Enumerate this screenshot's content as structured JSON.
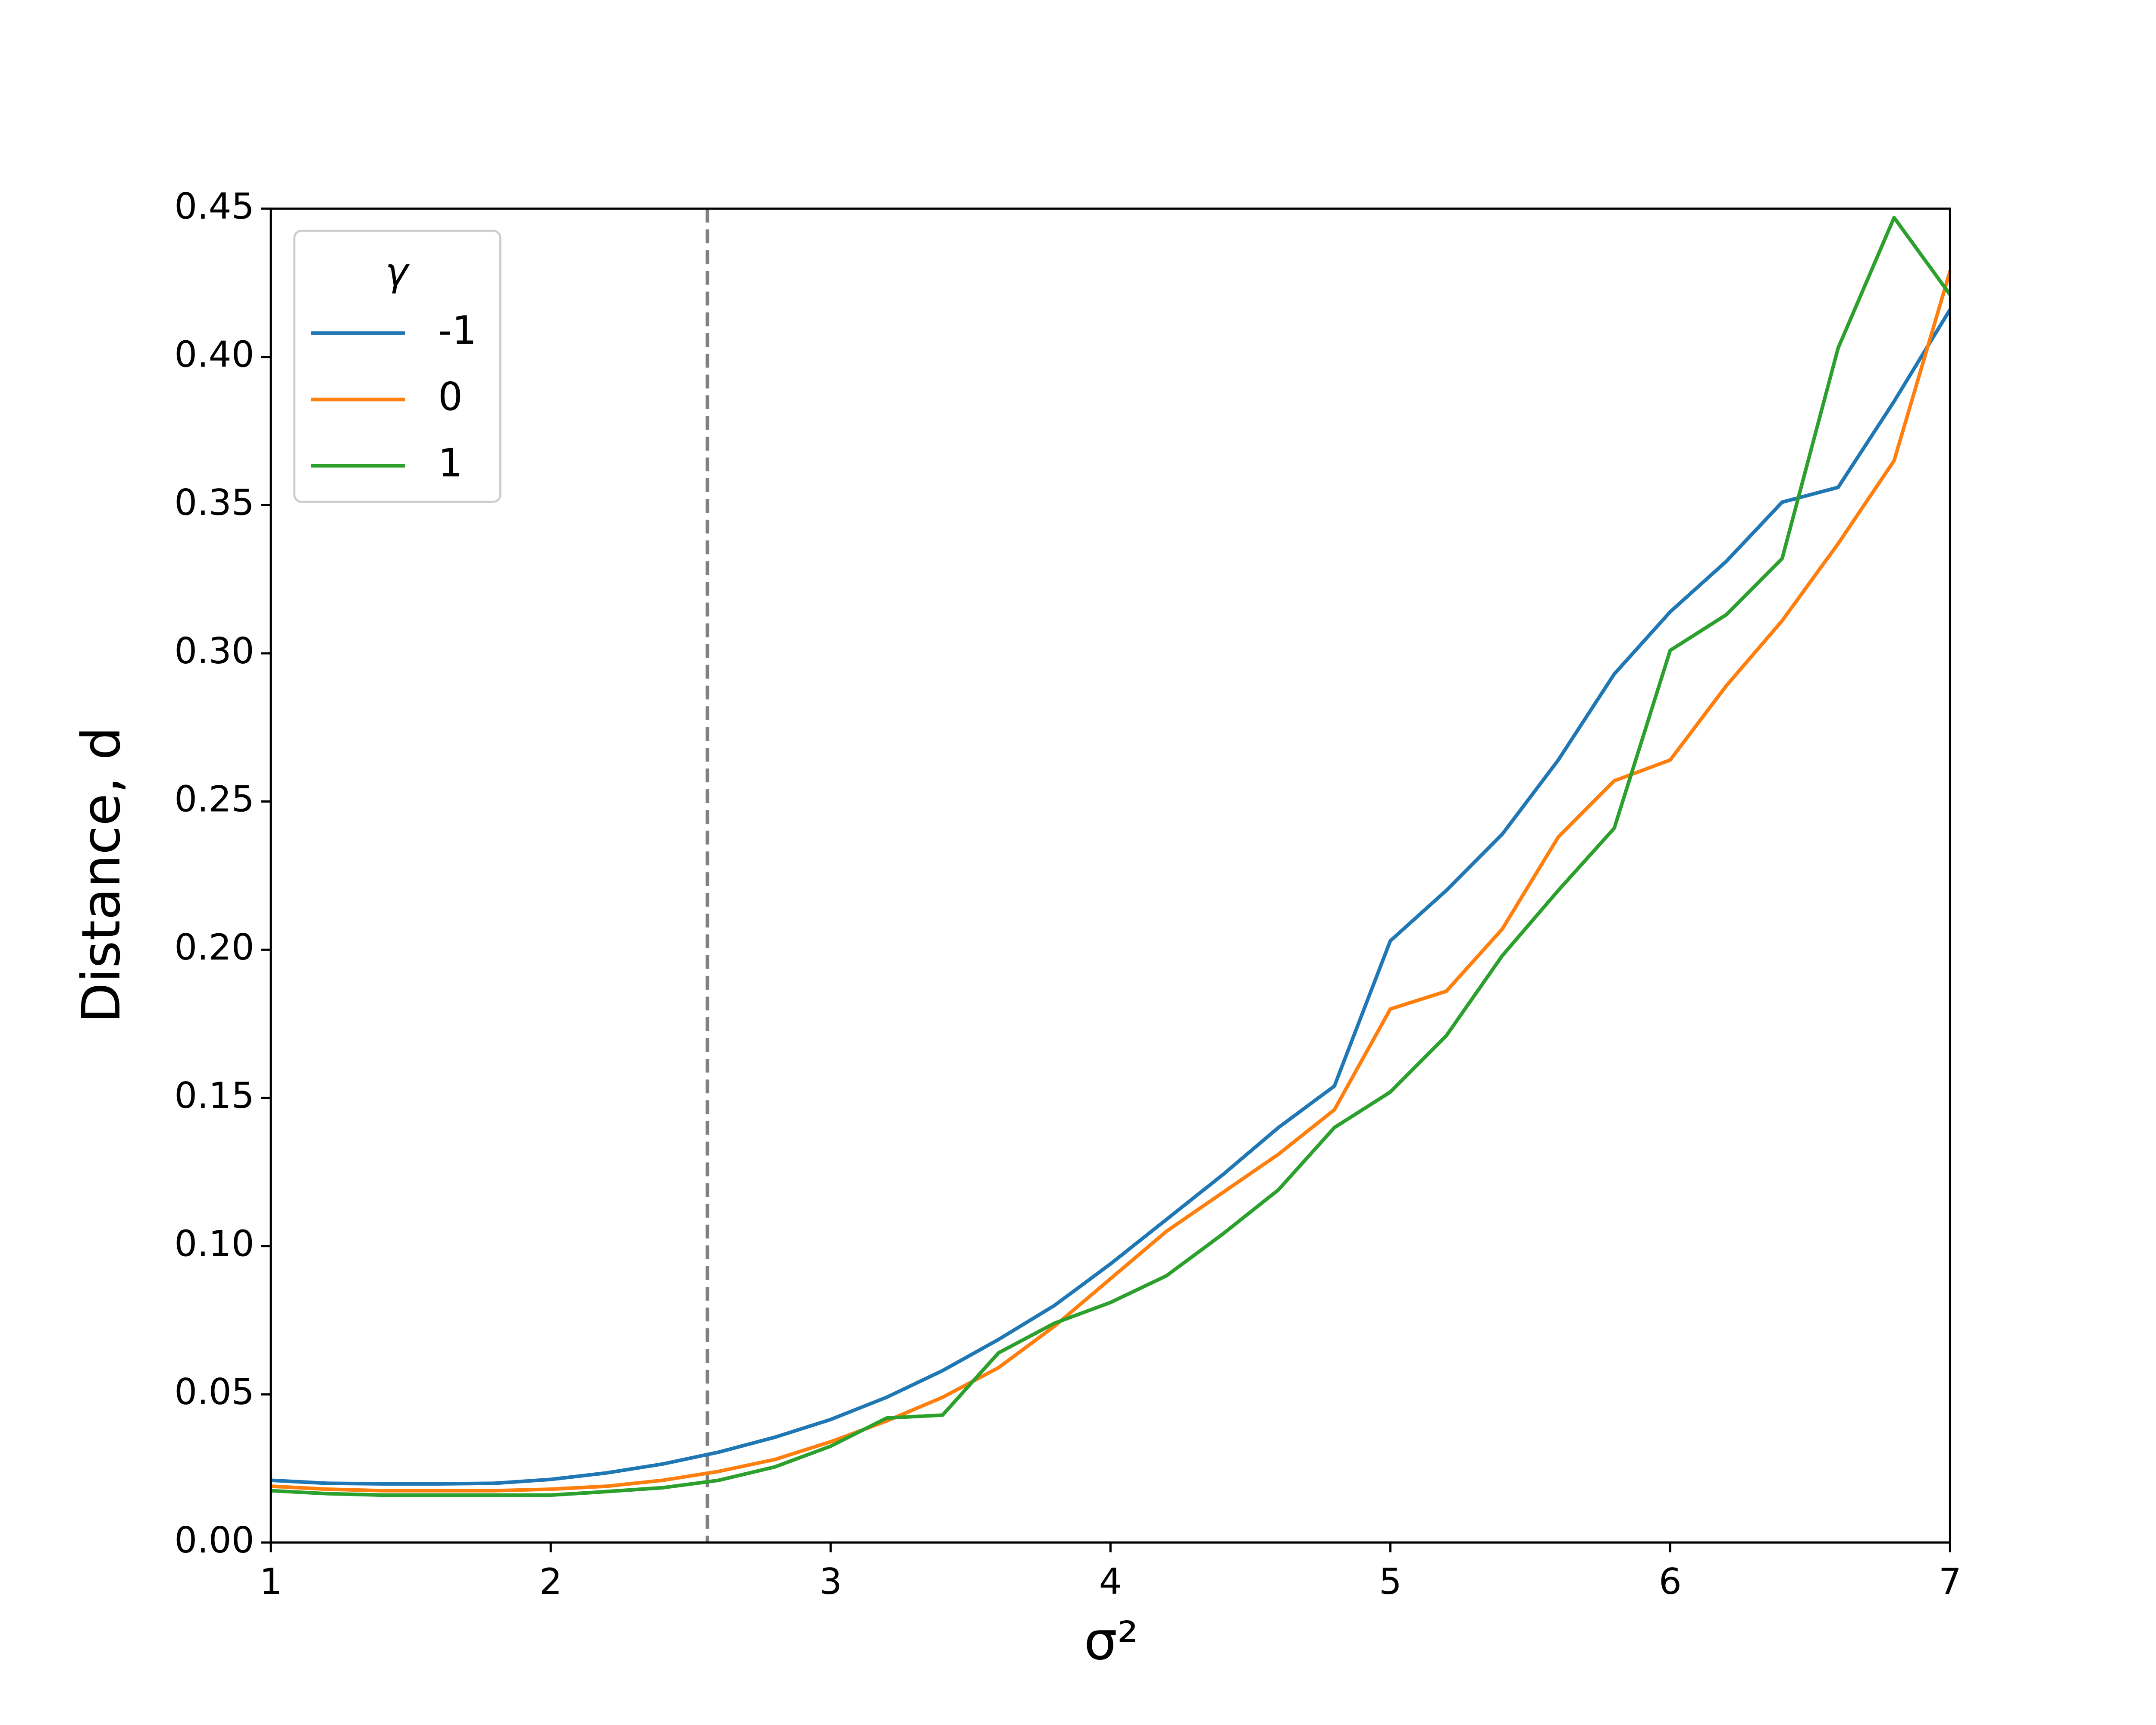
{
  "chart_data": {
    "type": "line",
    "xlabel": "σ²",
    "ylabel": "Distance, d",
    "legend_title": "γ",
    "legend_loc": "upper left",
    "x": [
      1,
      1.2,
      1.4,
      1.6,
      1.8,
      2,
      2.2,
      2.4,
      2.6,
      2.8,
      3,
      3.2,
      3.4,
      3.6,
      3.8,
      4,
      4.2,
      4.4,
      4.6,
      4.8,
      5,
      5.2,
      5.4,
      5.6,
      5.8,
      6,
      6.2,
      6.4,
      6.6,
      6.8,
      7
    ],
    "series": [
      {
        "name": "-1",
        "color": "#1f77b4",
        "values": [
          0.021,
          0.02,
          0.0198,
          0.0198,
          0.02,
          0.0213,
          0.0235,
          0.0265,
          0.0305,
          0.0355,
          0.0415,
          0.049,
          0.058,
          0.0685,
          0.08,
          0.094,
          0.109,
          0.124,
          0.14,
          0.154,
          0.203,
          0.22,
          0.239,
          0.264,
          0.293,
          0.314,
          0.331,
          0.351,
          0.356,
          0.385,
          0.416
        ]
      },
      {
        "name": "0",
        "color": "#ff7f0e",
        "values": [
          0.019,
          0.018,
          0.0175,
          0.0175,
          0.0175,
          0.018,
          0.019,
          0.021,
          0.024,
          0.028,
          0.034,
          0.041,
          0.049,
          0.059,
          0.073,
          0.089,
          0.105,
          0.118,
          0.131,
          0.146,
          0.18,
          0.186,
          0.207,
          0.238,
          0.257,
          0.264,
          0.289,
          0.311,
          0.337,
          0.365,
          0.429
        ]
      },
      {
        "name": "1",
        "color": "#2ca02c",
        "values": [
          0.0175,
          0.0165,
          0.016,
          0.016,
          0.016,
          0.016,
          0.0172,
          0.0185,
          0.021,
          0.0255,
          0.0325,
          0.042,
          0.043,
          0.064,
          0.074,
          0.081,
          0.09,
          0.104,
          0.119,
          0.14,
          0.152,
          0.171,
          0.198,
          0.22,
          0.241,
          0.301,
          0.313,
          0.332,
          0.403,
          0.447,
          0.421
        ]
      }
    ],
    "vline": {
      "x": 2.56,
      "color": "#808080"
    },
    "xlim": [
      1,
      7
    ],
    "xticks": [
      1,
      2,
      3,
      4,
      5,
      6,
      7
    ],
    "ylim": [
      0,
      0.45
    ],
    "yticks": [
      {
        "value": 0,
        "label": "0.00"
      },
      {
        "value": 0.05,
        "label": "0.05"
      },
      {
        "value": 0.1,
        "label": "0.10"
      },
      {
        "value": 0.15,
        "label": "0.15"
      },
      {
        "value": 0.2,
        "label": "0.20"
      },
      {
        "value": 0.25,
        "label": "0.25"
      },
      {
        "value": 0.3,
        "label": "0.30"
      },
      {
        "value": 0.35,
        "label": "0.35"
      },
      {
        "value": 0.4,
        "label": "0.40"
      },
      {
        "value": 0.45,
        "label": "0.45"
      }
    ],
    "grid": false
  }
}
